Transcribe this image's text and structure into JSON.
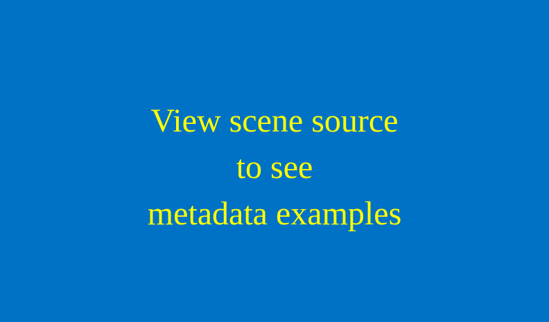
{
  "scene": {
    "background_color": "#0072C6",
    "text_color": "#FFFF00",
    "message_lines": [
      "View scene source",
      "to see",
      "metadata examples"
    ]
  }
}
